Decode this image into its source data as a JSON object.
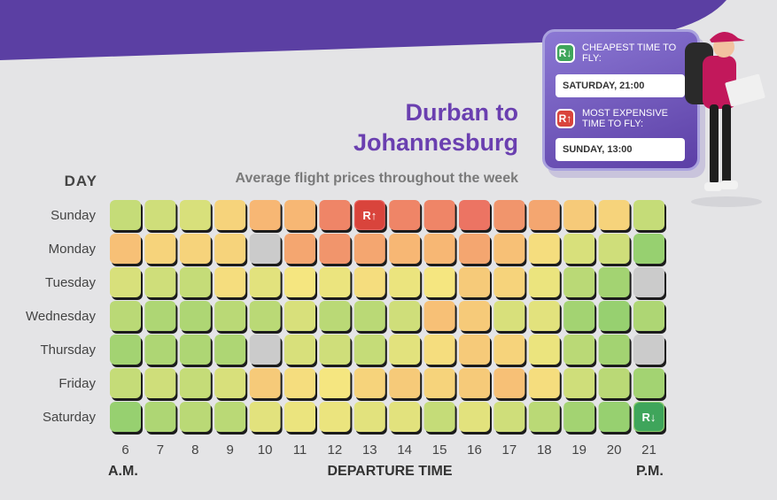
{
  "title_line1": "Durban to",
  "title_line2": "Johannesburg",
  "subtitle": "Average flight prices throughout the week",
  "day_header": "DAY",
  "am_label": "A.M.",
  "pm_label": "P.M.",
  "x_axis_title": "DEPARTURE TIME",
  "card": {
    "cheapest_label": "CHEAPEST TIME TO FLY:",
    "cheapest_value": "SATURDAY, 21:00",
    "expensive_label": "MOST EXPENSIVE TIME TO FLY:",
    "expensive_value": "SUNDAY, 13:00",
    "cheap_badge_text": "R↓",
    "expensive_badge_text": "R↑",
    "cheap_color": "#3fa55b",
    "expensive_color": "#d9443c"
  },
  "colors": {
    "banner": "#5b3fa3",
    "title": "#6a3fb0",
    "scale": [
      "#8ccd6e",
      "#c5dc78",
      "#f5e680",
      "#f7b774",
      "#e9635f"
    ],
    "no_data": "#cbcbcb"
  },
  "chart_data": {
    "type": "heatmap",
    "title": "Durban to Johannesburg",
    "subtitle": "Average flight prices throughout the week",
    "xlabel": "DEPARTURE TIME",
    "ylabel": "DAY",
    "x": [
      "6",
      "7",
      "8",
      "9",
      "10",
      "11",
      "12",
      "13",
      "14",
      "15",
      "16",
      "17",
      "18",
      "19",
      "20",
      "21"
    ],
    "y": [
      "Sunday",
      "Monday",
      "Tuesday",
      "Wednesday",
      "Thursday",
      "Friday",
      "Saturday"
    ],
    "value_scale": "relative price level (0 = cheapest, 1 = most expensive); null = no data",
    "values": [
      [
        0.25,
        0.3,
        0.35,
        0.6,
        0.75,
        0.75,
        0.9,
        1.0,
        0.9,
        0.9,
        0.95,
        0.85,
        0.8,
        0.65,
        0.6,
        0.25
      ],
      [
        0.7,
        0.6,
        0.6,
        0.6,
        null,
        0.8,
        0.85,
        0.8,
        0.75,
        0.75,
        0.8,
        0.7,
        0.55,
        0.35,
        0.3,
        0.05
      ],
      [
        0.35,
        0.3,
        0.25,
        0.55,
        0.4,
        0.5,
        0.45,
        0.55,
        0.45,
        0.5,
        0.65,
        0.6,
        0.45,
        0.2,
        0.1,
        null
      ],
      [
        0.2,
        0.15,
        0.15,
        0.2,
        0.2,
        0.35,
        0.2,
        0.2,
        0.3,
        0.7,
        0.65,
        0.35,
        0.4,
        0.1,
        0.05,
        0.15
      ],
      [
        0.1,
        0.15,
        0.15,
        0.15,
        null,
        0.35,
        0.3,
        0.25,
        0.4,
        0.55,
        0.65,
        0.6,
        0.45,
        0.2,
        0.1,
        null
      ],
      [
        0.25,
        0.3,
        0.25,
        0.35,
        0.65,
        0.55,
        0.5,
        0.6,
        0.65,
        0.6,
        0.65,
        0.7,
        0.55,
        0.3,
        0.2,
        0.1
      ],
      [
        0.05,
        0.15,
        0.2,
        0.2,
        0.4,
        0.45,
        0.45,
        0.4,
        0.4,
        0.25,
        0.4,
        0.3,
        0.2,
        0.1,
        0.05,
        0.0
      ]
    ],
    "markers": [
      {
        "type": "most_expensive",
        "day": "Sunday",
        "hour": "13"
      },
      {
        "type": "cheapest",
        "day": "Saturday",
        "hour": "21"
      }
    ]
  }
}
